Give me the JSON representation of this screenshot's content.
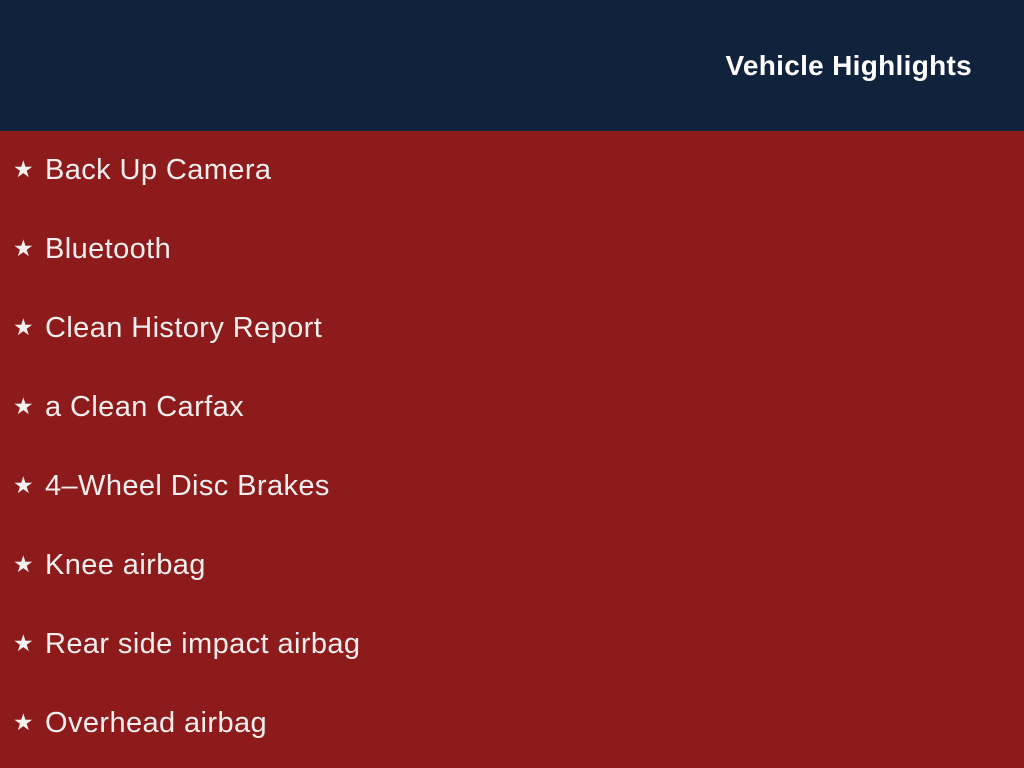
{
  "page": {
    "title": "Vehicle Highlights"
  },
  "colors": {
    "header_bg": "#11223d",
    "body_bg": "#8d1b1b",
    "title_text": "#ffffff",
    "list_text": "#f4eeee"
  },
  "list": {
    "star_icon": "★",
    "items": [
      "Back Up Camera",
      "Bluetooth",
      "Clean History Report",
      "a Clean Carfax",
      "4–Wheel Disc Brakes",
      "Knee airbag",
      "Rear side impact airbag",
      "Overhead airbag"
    ]
  }
}
